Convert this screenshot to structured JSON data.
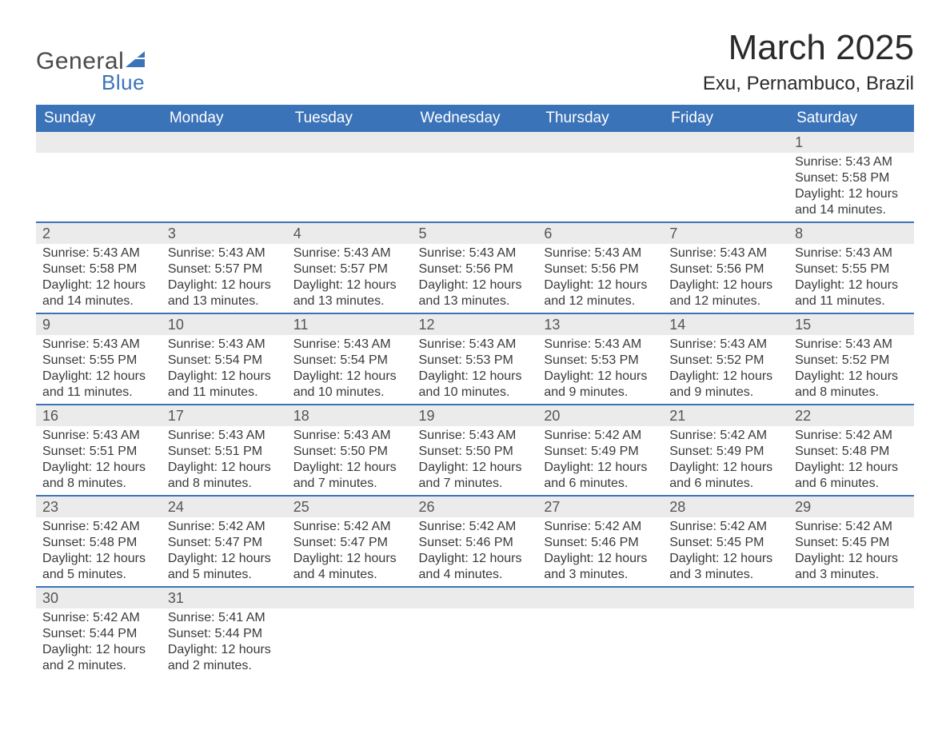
{
  "logo": {
    "text1": "General",
    "text2": "Blue",
    "sail_color": "#3b73b9"
  },
  "header": {
    "month_title": "March 2025",
    "location": "Exu, Pernambuco, Brazil"
  },
  "styling": {
    "header_bg": "#3b73b9",
    "header_text_color": "#ffffff",
    "daynum_bg": "#ebebeb",
    "daynum_border_top": "#3b73b9",
    "body_text_color": "#3a3a3a",
    "page_bg": "#ffffff",
    "month_title_fontsize": 44,
    "location_fontsize": 24,
    "dayheader_fontsize": 19,
    "daynum_fontsize": 18,
    "cell_fontsize": 16
  },
  "day_headers": [
    "Sunday",
    "Monday",
    "Tuesday",
    "Wednesday",
    "Thursday",
    "Friday",
    "Saturday"
  ],
  "weeks": [
    {
      "days": [
        null,
        null,
        null,
        null,
        null,
        null,
        {
          "num": "1",
          "sunrise": "Sunrise: 5:43 AM",
          "sunset": "Sunset: 5:58 PM",
          "daylight1": "Daylight: 12 hours",
          "daylight2": "and 14 minutes."
        }
      ]
    },
    {
      "days": [
        {
          "num": "2",
          "sunrise": "Sunrise: 5:43 AM",
          "sunset": "Sunset: 5:58 PM",
          "daylight1": "Daylight: 12 hours",
          "daylight2": "and 14 minutes."
        },
        {
          "num": "3",
          "sunrise": "Sunrise: 5:43 AM",
          "sunset": "Sunset: 5:57 PM",
          "daylight1": "Daylight: 12 hours",
          "daylight2": "and 13 minutes."
        },
        {
          "num": "4",
          "sunrise": "Sunrise: 5:43 AM",
          "sunset": "Sunset: 5:57 PM",
          "daylight1": "Daylight: 12 hours",
          "daylight2": "and 13 minutes."
        },
        {
          "num": "5",
          "sunrise": "Sunrise: 5:43 AM",
          "sunset": "Sunset: 5:56 PM",
          "daylight1": "Daylight: 12 hours",
          "daylight2": "and 13 minutes."
        },
        {
          "num": "6",
          "sunrise": "Sunrise: 5:43 AM",
          "sunset": "Sunset: 5:56 PM",
          "daylight1": "Daylight: 12 hours",
          "daylight2": "and 12 minutes."
        },
        {
          "num": "7",
          "sunrise": "Sunrise: 5:43 AM",
          "sunset": "Sunset: 5:56 PM",
          "daylight1": "Daylight: 12 hours",
          "daylight2": "and 12 minutes."
        },
        {
          "num": "8",
          "sunrise": "Sunrise: 5:43 AM",
          "sunset": "Sunset: 5:55 PM",
          "daylight1": "Daylight: 12 hours",
          "daylight2": "and 11 minutes."
        }
      ]
    },
    {
      "days": [
        {
          "num": "9",
          "sunrise": "Sunrise: 5:43 AM",
          "sunset": "Sunset: 5:55 PM",
          "daylight1": "Daylight: 12 hours",
          "daylight2": "and 11 minutes."
        },
        {
          "num": "10",
          "sunrise": "Sunrise: 5:43 AM",
          "sunset": "Sunset: 5:54 PM",
          "daylight1": "Daylight: 12 hours",
          "daylight2": "and 11 minutes."
        },
        {
          "num": "11",
          "sunrise": "Sunrise: 5:43 AM",
          "sunset": "Sunset: 5:54 PM",
          "daylight1": "Daylight: 12 hours",
          "daylight2": "and 10 minutes."
        },
        {
          "num": "12",
          "sunrise": "Sunrise: 5:43 AM",
          "sunset": "Sunset: 5:53 PM",
          "daylight1": "Daylight: 12 hours",
          "daylight2": "and 10 minutes."
        },
        {
          "num": "13",
          "sunrise": "Sunrise: 5:43 AM",
          "sunset": "Sunset: 5:53 PM",
          "daylight1": "Daylight: 12 hours",
          "daylight2": "and 9 minutes."
        },
        {
          "num": "14",
          "sunrise": "Sunrise: 5:43 AM",
          "sunset": "Sunset: 5:52 PM",
          "daylight1": "Daylight: 12 hours",
          "daylight2": "and 9 minutes."
        },
        {
          "num": "15",
          "sunrise": "Sunrise: 5:43 AM",
          "sunset": "Sunset: 5:52 PM",
          "daylight1": "Daylight: 12 hours",
          "daylight2": "and 8 minutes."
        }
      ]
    },
    {
      "days": [
        {
          "num": "16",
          "sunrise": "Sunrise: 5:43 AM",
          "sunset": "Sunset: 5:51 PM",
          "daylight1": "Daylight: 12 hours",
          "daylight2": "and 8 minutes."
        },
        {
          "num": "17",
          "sunrise": "Sunrise: 5:43 AM",
          "sunset": "Sunset: 5:51 PM",
          "daylight1": "Daylight: 12 hours",
          "daylight2": "and 8 minutes."
        },
        {
          "num": "18",
          "sunrise": "Sunrise: 5:43 AM",
          "sunset": "Sunset: 5:50 PM",
          "daylight1": "Daylight: 12 hours",
          "daylight2": "and 7 minutes."
        },
        {
          "num": "19",
          "sunrise": "Sunrise: 5:43 AM",
          "sunset": "Sunset: 5:50 PM",
          "daylight1": "Daylight: 12 hours",
          "daylight2": "and 7 minutes."
        },
        {
          "num": "20",
          "sunrise": "Sunrise: 5:42 AM",
          "sunset": "Sunset: 5:49 PM",
          "daylight1": "Daylight: 12 hours",
          "daylight2": "and 6 minutes."
        },
        {
          "num": "21",
          "sunrise": "Sunrise: 5:42 AM",
          "sunset": "Sunset: 5:49 PM",
          "daylight1": "Daylight: 12 hours",
          "daylight2": "and 6 minutes."
        },
        {
          "num": "22",
          "sunrise": "Sunrise: 5:42 AM",
          "sunset": "Sunset: 5:48 PM",
          "daylight1": "Daylight: 12 hours",
          "daylight2": "and 6 minutes."
        }
      ]
    },
    {
      "days": [
        {
          "num": "23",
          "sunrise": "Sunrise: 5:42 AM",
          "sunset": "Sunset: 5:48 PM",
          "daylight1": "Daylight: 12 hours",
          "daylight2": "and 5 minutes."
        },
        {
          "num": "24",
          "sunrise": "Sunrise: 5:42 AM",
          "sunset": "Sunset: 5:47 PM",
          "daylight1": "Daylight: 12 hours",
          "daylight2": "and 5 minutes."
        },
        {
          "num": "25",
          "sunrise": "Sunrise: 5:42 AM",
          "sunset": "Sunset: 5:47 PM",
          "daylight1": "Daylight: 12 hours",
          "daylight2": "and 4 minutes."
        },
        {
          "num": "26",
          "sunrise": "Sunrise: 5:42 AM",
          "sunset": "Sunset: 5:46 PM",
          "daylight1": "Daylight: 12 hours",
          "daylight2": "and 4 minutes."
        },
        {
          "num": "27",
          "sunrise": "Sunrise: 5:42 AM",
          "sunset": "Sunset: 5:46 PM",
          "daylight1": "Daylight: 12 hours",
          "daylight2": "and 3 minutes."
        },
        {
          "num": "28",
          "sunrise": "Sunrise: 5:42 AM",
          "sunset": "Sunset: 5:45 PM",
          "daylight1": "Daylight: 12 hours",
          "daylight2": "and 3 minutes."
        },
        {
          "num": "29",
          "sunrise": "Sunrise: 5:42 AM",
          "sunset": "Sunset: 5:45 PM",
          "daylight1": "Daylight: 12 hours",
          "daylight2": "and 3 minutes."
        }
      ]
    },
    {
      "days": [
        {
          "num": "30",
          "sunrise": "Sunrise: 5:42 AM",
          "sunset": "Sunset: 5:44 PM",
          "daylight1": "Daylight: 12 hours",
          "daylight2": "and 2 minutes."
        },
        {
          "num": "31",
          "sunrise": "Sunrise: 5:41 AM",
          "sunset": "Sunset: 5:44 PM",
          "daylight1": "Daylight: 12 hours",
          "daylight2": "and 2 minutes."
        },
        null,
        null,
        null,
        null,
        null
      ]
    }
  ]
}
